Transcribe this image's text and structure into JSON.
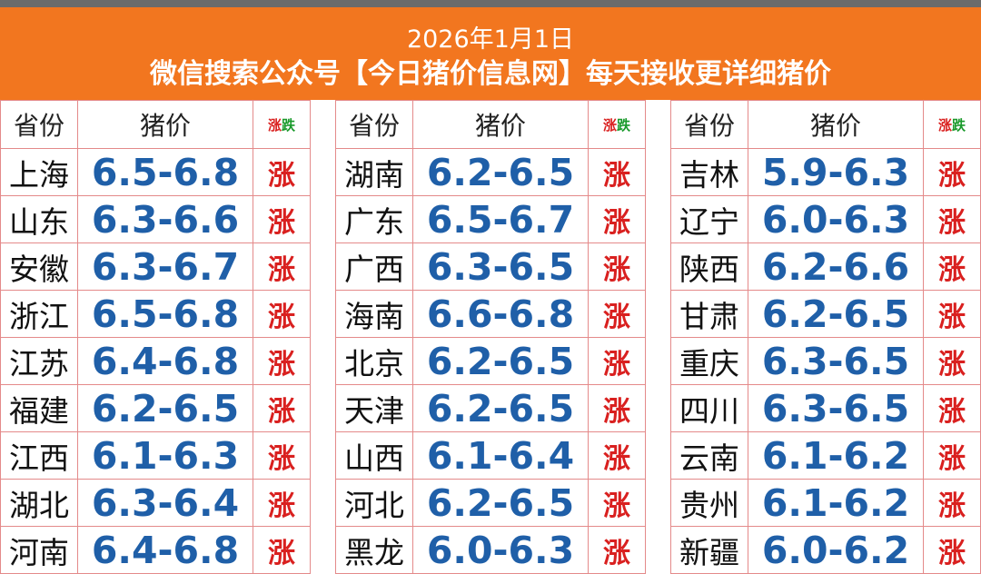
{
  "header": {
    "date": "2026年1月1日",
    "subtitle": "微信搜索公众号【今日猪价信息网】每天接收更详细猪价"
  },
  "columns_header": {
    "province": "省份",
    "price": "猪价",
    "trend_up": "涨",
    "trend_down": "跌"
  },
  "colors": {
    "header_bg": "#f2761f",
    "price": "#1f5fa8",
    "trend_up": "#d9201f",
    "trend_down": "#1a9a2b",
    "border": "#e48a8a"
  },
  "tables": [
    {
      "rows": [
        {
          "province": "上海",
          "price": "6.5-6.8",
          "trend": "涨"
        },
        {
          "province": "山东",
          "price": "6.3-6.6",
          "trend": "涨"
        },
        {
          "province": "安徽",
          "price": "6.3-6.7",
          "trend": "涨"
        },
        {
          "province": "浙江",
          "price": "6.5-6.8",
          "trend": "涨"
        },
        {
          "province": "江苏",
          "price": "6.4-6.8",
          "trend": "涨"
        },
        {
          "province": "福建",
          "price": "6.2-6.5",
          "trend": "涨"
        },
        {
          "province": "江西",
          "price": "6.1-6.3",
          "trend": "涨"
        },
        {
          "province": "湖北",
          "price": "6.3-6.4",
          "trend": "涨"
        },
        {
          "province": "河南",
          "price": "6.4-6.8",
          "trend": "涨"
        }
      ]
    },
    {
      "rows": [
        {
          "province": "湖南",
          "price": "6.2-6.5",
          "trend": "涨"
        },
        {
          "province": "广东",
          "price": "6.5-6.7",
          "trend": "涨"
        },
        {
          "province": "广西",
          "price": "6.3-6.5",
          "trend": "涨"
        },
        {
          "province": "海南",
          "price": "6.6-6.8",
          "trend": "涨"
        },
        {
          "province": "北京",
          "price": "6.2-6.5",
          "trend": "涨"
        },
        {
          "province": "天津",
          "price": "6.2-6.5",
          "trend": "涨"
        },
        {
          "province": "山西",
          "price": "6.1-6.4",
          "trend": "涨"
        },
        {
          "province": "河北",
          "price": "6.2-6.5",
          "trend": "涨"
        },
        {
          "province": "黑龙",
          "price": "6.0-6.3",
          "trend": "涨"
        }
      ]
    },
    {
      "rows": [
        {
          "province": "吉林",
          "price": "5.9-6.3",
          "trend": "涨"
        },
        {
          "province": "辽宁",
          "price": "6.0-6.3",
          "trend": "涨"
        },
        {
          "province": "陕西",
          "price": "6.2-6.6",
          "trend": "涨"
        },
        {
          "province": "甘肃",
          "price": "6.2-6.5",
          "trend": "涨"
        },
        {
          "province": "重庆",
          "price": "6.3-6.5",
          "trend": "涨"
        },
        {
          "province": "四川",
          "price": "6.3-6.5",
          "trend": "涨"
        },
        {
          "province": "云南",
          "price": "6.1-6.2",
          "trend": "涨"
        },
        {
          "province": "贵州",
          "price": "6.1-6.2",
          "trend": "涨"
        },
        {
          "province": "新疆",
          "price": "6.0-6.2",
          "trend": "涨"
        }
      ]
    }
  ]
}
